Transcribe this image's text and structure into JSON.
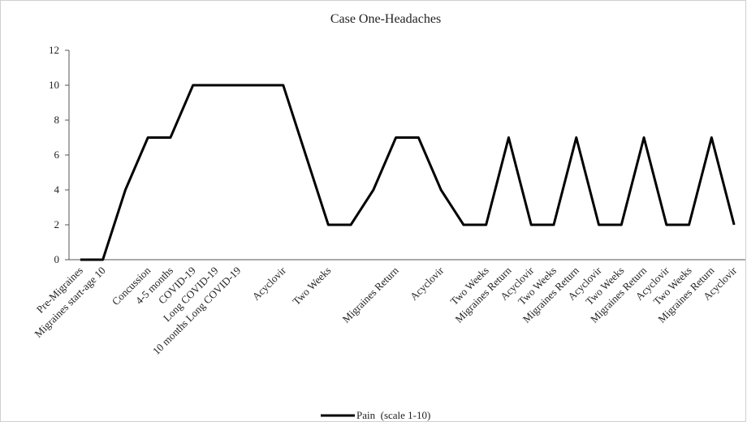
{
  "chart_data": {
    "type": "line",
    "title": "Case One-Headaches",
    "categories": [
      "Pre-Migraines",
      "Migraines start-age 10",
      null,
      "Concussion",
      "4-5 months",
      "COVID-19",
      "Long COVID-19",
      "10 months Long COVID-19",
      null,
      "Acyclovir",
      null,
      "Two Weeks",
      null,
      null,
      "Migraines Return",
      null,
      "Acyclovir",
      null,
      "Two Weeks",
      "Migraines Return",
      "Acyclovir",
      "Two Weeks",
      "Migraines Return",
      "Acyclovir",
      "Two Weeks",
      "Migraines Return",
      "Acyclovir",
      "Two Weeks",
      "Migraines Return",
      "Acyclovir"
    ],
    "series": [
      {
        "name": "Pain  (scale 1-10)",
        "color": "#000000",
        "values": [
          0,
          0,
          4,
          7,
          7,
          10,
          10,
          10,
          10,
          10,
          6,
          2,
          2,
          4,
          7,
          7,
          4,
          2,
          2,
          7,
          2,
          2,
          7,
          2,
          2,
          7,
          2,
          2,
          7,
          2
        ]
      }
    ],
    "ylim": [
      0,
      12
    ],
    "yticks": [
      0,
      2,
      4,
      6,
      8,
      10,
      12
    ],
    "grid": false,
    "legend": "bottom"
  }
}
